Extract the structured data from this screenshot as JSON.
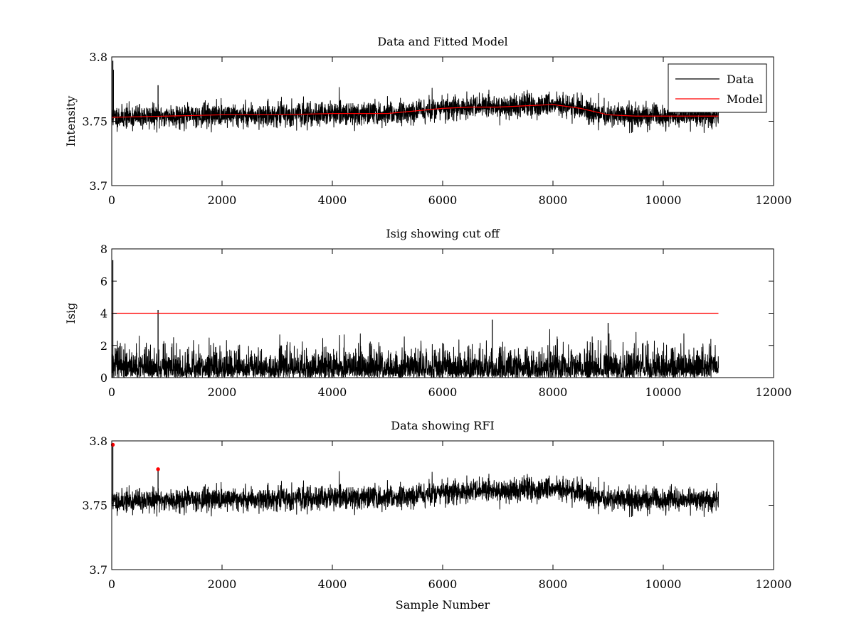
{
  "chart_data": [
    {
      "type": "line",
      "title": "Data and Fitted Model",
      "xlabel": "",
      "ylabel": "Intensity",
      "xlim": [
        0,
        12000
      ],
      "ylim": [
        3.7,
        3.8
      ],
      "xticks": [
        0,
        2000,
        4000,
        6000,
        8000,
        10000,
        12000
      ],
      "yticks": [
        3.7,
        3.75,
        3.8
      ],
      "xtick_labels": [
        "0",
        "2000",
        "4000",
        "6000",
        "8000",
        "10000",
        "12000"
      ],
      "ytick_labels": [
        "3.7",
        "3.75",
        "3.8"
      ],
      "legend": {
        "position": "top-right",
        "entries": [
          {
            "label": "Data",
            "color": "#000000"
          },
          {
            "label": "Model",
            "color": "#ff0000"
          }
        ]
      },
      "series": [
        {
          "name": "Data",
          "color": "#000000",
          "kind": "noise",
          "x_range": [
            0,
            11000
          ],
          "baseline_series": "Model",
          "noise_amplitude": 0.008,
          "seed": 11,
          "spikes": [
            {
              "x": 20,
              "y": 3.797
            },
            {
              "x": 30,
              "y": 3.79
            },
            {
              "x": 840,
              "y": 3.778
            }
          ]
        },
        {
          "name": "Model",
          "color": "#ff0000",
          "x": [
            0,
            1000,
            2000,
            3000,
            4000,
            5000,
            5500,
            6000,
            6500,
            7000,
            7500,
            8000,
            8500,
            9000,
            9500,
            10000,
            11000
          ],
          "y": [
            3.753,
            3.754,
            3.755,
            3.755,
            3.756,
            3.756,
            3.758,
            3.76,
            3.761,
            3.761,
            3.762,
            3.763,
            3.76,
            3.755,
            3.754,
            3.754,
            3.754
          ]
        }
      ]
    },
    {
      "type": "line",
      "title": "Isig showing cut off",
      "xlabel": "",
      "ylabel": "Isig",
      "xlim": [
        0,
        12000
      ],
      "ylim": [
        0,
        8
      ],
      "xticks": [
        0,
        2000,
        4000,
        6000,
        8000,
        10000,
        12000
      ],
      "yticks": [
        0,
        2,
        4,
        6,
        8
      ],
      "xtick_labels": [
        "0",
        "2000",
        "4000",
        "6000",
        "8000",
        "10000",
        "12000"
      ],
      "ytick_labels": [
        "0",
        "2",
        "4",
        "6",
        "8"
      ],
      "series": [
        {
          "name": "Isig",
          "color": "#000000",
          "kind": "abs-noise",
          "x_range": [
            0,
            11000
          ],
          "noise_amplitude": 1.4,
          "seed": 23,
          "spikes": [
            {
              "x": 20,
              "y": 7.3
            },
            {
              "x": 840,
              "y": 4.2
            },
            {
              "x": 6900,
              "y": 3.6
            },
            {
              "x": 9000,
              "y": 3.4
            }
          ]
        },
        {
          "name": "Cutoff",
          "color": "#ff0000",
          "x": [
            0,
            11000
          ],
          "y": [
            4,
            4
          ]
        }
      ]
    },
    {
      "type": "line",
      "title": "Data showing RFI",
      "xlabel": "Sample Number",
      "ylabel": "",
      "xlim": [
        0,
        12000
      ],
      "ylim": [
        3.7,
        3.8
      ],
      "xticks": [
        0,
        2000,
        4000,
        6000,
        8000,
        10000,
        12000
      ],
      "yticks": [
        3.7,
        3.75,
        3.8
      ],
      "xtick_labels": [
        "0",
        "2000",
        "4000",
        "6000",
        "8000",
        "10000",
        "12000"
      ],
      "ytick_labels": [
        "3.7",
        "3.75",
        "3.8"
      ],
      "series": [
        {
          "name": "Data",
          "color": "#000000",
          "kind": "noise",
          "x_range": [
            0,
            11000
          ],
          "baseline_from_chart": 0,
          "baseline_series": "Model",
          "noise_amplitude": 0.008,
          "seed": 11,
          "spikes": [
            {
              "x": 20,
              "y": 3.797
            },
            {
              "x": 840,
              "y": 3.778
            }
          ]
        },
        {
          "name": "RFI",
          "color": "#ff0000",
          "kind": "markers",
          "x": [
            20,
            840
          ],
          "y": [
            3.797,
            3.778
          ]
        }
      ]
    }
  ]
}
